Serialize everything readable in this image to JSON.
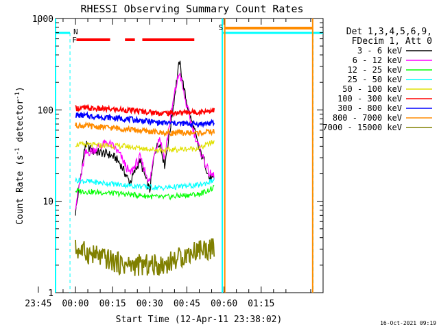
{
  "chart_data": {
    "type": "line",
    "title": "RHESSI Observing Summary Count Rates",
    "ylabel_main": "Count Rate (s",
    "ylabel_sup1": "-1",
    "ylabel_mid": " detector",
    "ylabel_sup2": "-1",
    "ylabel_end": ")",
    "xlabel": "Start Time (12-Apr-11 23:38:02)",
    "yscale": "log",
    "ylim": [
      1,
      1000
    ],
    "xlim_minutes": [
      -8.03,
      100.0
    ],
    "y_ticks": [
      {
        "value": 1,
        "label": "1"
      },
      {
        "value": 10,
        "label": "10"
      },
      {
        "value": 100,
        "label": "100"
      },
      {
        "value": 1000,
        "label": "1000"
      }
    ],
    "x_ticks": [
      {
        "value": -15,
        "label": "23:45"
      },
      {
        "value": 0,
        "label": "00:00"
      },
      {
        "value": 15,
        "label": "00:15"
      },
      {
        "value": 30,
        "label": "00:30"
      },
      {
        "value": 45,
        "label": "00:45"
      },
      {
        "value": 60,
        "label": "00:60"
      },
      {
        "value": 75,
        "label": "01:15"
      }
    ],
    "legend_header": [
      "Det 1,3,4,5,6,9,",
      "FDecim 1, Att 0"
    ],
    "series": [
      {
        "name": "3 - 6 keV",
        "color": "#000000",
        "minutes": [
          0,
          4,
          7,
          10,
          13,
          16,
          18,
          22,
          26,
          30,
          32,
          34,
          36,
          38,
          40,
          42,
          44,
          46,
          48,
          50,
          52,
          54,
          56
        ],
        "values": [
          7.5,
          42,
          35,
          34,
          33,
          30,
          26,
          16,
          28,
          13,
          35,
          45,
          25,
          55,
          140,
          340,
          160,
          90,
          60,
          36,
          28,
          18,
          17
        ]
      },
      {
        "name": "6 - 12 keV",
        "color": "#ff00ff",
        "minutes": [
          0,
          4,
          7,
          10,
          13,
          16,
          18,
          22,
          26,
          30,
          32,
          34,
          36,
          38,
          40,
          42,
          44,
          46,
          48,
          50,
          52,
          54,
          56
        ],
        "values": [
          9,
          33,
          36,
          40,
          44,
          38,
          32,
          20,
          30,
          16,
          36,
          50,
          30,
          70,
          150,
          260,
          140,
          85,
          55,
          38,
          28,
          20,
          19
        ]
      },
      {
        "name": "12 - 25 keV",
        "color": "#00ff00",
        "minutes": [
          0,
          20,
          35,
          50,
          56
        ],
        "values": [
          13,
          12,
          11,
          12,
          14
        ]
      },
      {
        "name": "25 - 50 keV",
        "color": "#00ffff",
        "minutes": [
          0,
          20,
          35,
          50,
          56
        ],
        "values": [
          17,
          15,
          14,
          15,
          17
        ]
      },
      {
        "name": "50 - 100 keV",
        "color": "#e0e000",
        "minutes": [
          0,
          20,
          35,
          50,
          56
        ],
        "values": [
          42,
          40,
          36,
          38,
          45
        ]
      },
      {
        "name": "100 - 300 keV",
        "color": "#ff0000",
        "minutes": [
          0,
          20,
          35,
          50,
          56
        ],
        "values": [
          105,
          100,
          92,
          95,
          100
        ]
      },
      {
        "name": "300 - 800 keV",
        "color": "#0000ff",
        "minutes": [
          0,
          20,
          35,
          50,
          56
        ],
        "values": [
          88,
          80,
          72,
          70,
          72
        ]
      },
      {
        "name": "800 - 7000 keV",
        "color": "#ff8c00",
        "minutes": [
          0,
          20,
          35,
          50,
          56
        ],
        "values": [
          68,
          62,
          56,
          56,
          58
        ]
      },
      {
        "name": "7000 - 15000 keV",
        "color": "#808000",
        "minutes": [
          0,
          20,
          35,
          50,
          56
        ],
        "values": [
          3,
          2,
          2,
          3,
          3
        ]
      }
    ],
    "annotations": [
      {
        "label": "N",
        "color": "#00ffff"
      },
      {
        "label": "F",
        "color": "#ff0000"
      },
      {
        "label": "S",
        "color": "#ff8c00"
      }
    ]
  },
  "timestamp": "16-Oct-2021 09:19"
}
